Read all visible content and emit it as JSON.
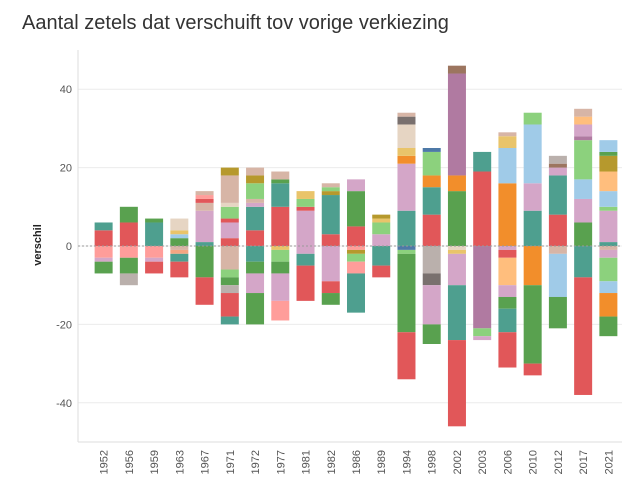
{
  "chart_data": {
    "type": "bar",
    "stacked": "diverging",
    "title": "Aantal zetels dat verschuift tov vorige verkiezing",
    "xlabel": "",
    "ylabel": "verschil",
    "ylim": [
      -50,
      50
    ],
    "yticks": [
      40,
      20,
      0,
      -20,
      -40
    ],
    "categories": [
      "1952",
      "1956",
      "1959",
      "1963",
      "1967",
      "1971",
      "1972",
      "1977",
      "1981",
      "1982",
      "1986",
      "1989",
      "1994",
      "1998",
      "2002",
      "2003",
      "2006",
      "2010",
      "2012",
      "2017",
      "2021"
    ],
    "bars": [
      {
        "year": "1952",
        "segments": [
          {
            "c": "#e15759",
            "v": 4
          },
          {
            "c": "#4e9f8f",
            "v": 2
          },
          {
            "c": "#ff9d9a",
            "v": -3
          },
          {
            "c": "#d4a6c8",
            "v": -1
          },
          {
            "c": "#59a14f",
            "v": -3
          }
        ]
      },
      {
        "year": "1956",
        "segments": [
          {
            "c": "#e15759",
            "v": 6
          },
          {
            "c": "#59a14f",
            "v": 4
          },
          {
            "c": "#ff9d9a",
            "v": -3
          },
          {
            "c": "#59a14f",
            "v": -4
          },
          {
            "c": "#bab0ac",
            "v": -3
          }
        ]
      },
      {
        "year": "1959",
        "segments": [
          {
            "c": "#4e9f8f",
            "v": 6
          },
          {
            "c": "#59a14f",
            "v": 1
          },
          {
            "c": "#ff9d9a",
            "v": -3
          },
          {
            "c": "#d4a6c8",
            "v": -1
          },
          {
            "c": "#e15759",
            "v": -3
          }
        ]
      },
      {
        "year": "1963",
        "segments": [
          {
            "c": "#59a14f",
            "v": 2
          },
          {
            "c": "#a0cbe8",
            "v": 1
          },
          {
            "c": "#e9c46a",
            "v": 1
          },
          {
            "c": "#e6d5c3",
            "v": 3
          },
          {
            "c": "#d7b5a6",
            "v": -1
          },
          {
            "c": "#f4a582",
            "v": -1
          },
          {
            "c": "#4e9f8f",
            "v": -2
          },
          {
            "c": "#e15759",
            "v": -4
          }
        ]
      },
      {
        "year": "1967",
        "segments": [
          {
            "c": "#4e9f8f",
            "v": 1
          },
          {
            "c": "#d4a6c8",
            "v": 8
          },
          {
            "c": "#d7b5a6",
            "v": 2
          },
          {
            "c": "#e15759",
            "v": 1
          },
          {
            "c": "#ff9d9a",
            "v": 1
          },
          {
            "c": "#d7b5a6",
            "v": 1
          },
          {
            "c": "#59a14f",
            "v": -8
          },
          {
            "c": "#e15759",
            "v": -7
          }
        ]
      },
      {
        "year": "1971",
        "segments": [
          {
            "c": "#e15759",
            "v": 2
          },
          {
            "c": "#d4a6c8",
            "v": 4
          },
          {
            "c": "#e15759",
            "v": 1
          },
          {
            "c": "#8cd17d",
            "v": 3
          },
          {
            "c": "#e6d5c3",
            "v": 1
          },
          {
            "c": "#d7b5a6",
            "v": 7
          },
          {
            "c": "#b6992d",
            "v": 2
          },
          {
            "c": "#d7b5a6",
            "v": -6
          },
          {
            "c": "#8cd17d",
            "v": -2
          },
          {
            "c": "#59a14f",
            "v": -2
          },
          {
            "c": "#bab0ac",
            "v": -2
          },
          {
            "c": "#e15759",
            "v": -6
          },
          {
            "c": "#4e9f8f",
            "v": -2
          }
        ]
      },
      {
        "year": "1972",
        "segments": [
          {
            "c": "#e15759",
            "v": 4
          },
          {
            "c": "#4e9f8f",
            "v": 6
          },
          {
            "c": "#d4a6c8",
            "v": 1
          },
          {
            "c": "#d7b5a6",
            "v": 1
          },
          {
            "c": "#8cd17d",
            "v": 4
          },
          {
            "c": "#b6992d",
            "v": 2
          },
          {
            "c": "#d7b5a6",
            "v": 2
          },
          {
            "c": "#4e9f8f",
            "v": -4
          },
          {
            "c": "#59a14f",
            "v": -3
          },
          {
            "c": "#d4a6c8",
            "v": -5
          },
          {
            "c": "#59a14f",
            "v": -8
          }
        ]
      },
      {
        "year": "1977",
        "segments": [
          {
            "c": "#e15759",
            "v": 10
          },
          {
            "c": "#4e9f8f",
            "v": 6
          },
          {
            "c": "#59a14f",
            "v": 1
          },
          {
            "c": "#d7b5a6",
            "v": 2
          },
          {
            "c": "#e9c46a",
            "v": -1
          },
          {
            "c": "#8cd17d",
            "v": -3
          },
          {
            "c": "#59a14f",
            "v": -3
          },
          {
            "c": "#d4a6c8",
            "v": -7
          },
          {
            "c": "#ff9d9a",
            "v": -5
          }
        ]
      },
      {
        "year": "1981",
        "segments": [
          {
            "c": "#d4a6c8",
            "v": 9
          },
          {
            "c": "#e15759",
            "v": 1
          },
          {
            "c": "#8cd17d",
            "v": 2
          },
          {
            "c": "#e9c46a",
            "v": 2
          },
          {
            "c": "#d4a6c8",
            "v": -2
          },
          {
            "c": "#4e9f8f",
            "v": -3
          },
          {
            "c": "#e15759",
            "v": -9
          }
        ]
      },
      {
        "year": "1982",
        "segments": [
          {
            "c": "#e15759",
            "v": 3
          },
          {
            "c": "#4e9f8f",
            "v": 10
          },
          {
            "c": "#b6992d",
            "v": 1
          },
          {
            "c": "#8cd17d",
            "v": 1
          },
          {
            "c": "#d7b5a6",
            "v": 1
          },
          {
            "c": "#d4a6c8",
            "v": -9
          },
          {
            "c": "#e15759",
            "v": -3
          },
          {
            "c": "#59a14f",
            "v": -3
          }
        ]
      },
      {
        "year": "1986",
        "segments": [
          {
            "c": "#e15759",
            "v": 5
          },
          {
            "c": "#59a14f",
            "v": 9
          },
          {
            "c": "#d4a6c8",
            "v": 3
          },
          {
            "c": "#ff9d9a",
            "v": -1
          },
          {
            "c": "#b6992d",
            "v": -1
          },
          {
            "c": "#8cd17d",
            "v": -2
          },
          {
            "c": "#ff9d9a",
            "v": -3
          },
          {
            "c": "#4e9f8f",
            "v": -10
          }
        ]
      },
      {
        "year": "1989",
        "segments": [
          {
            "c": "#d4a6c8",
            "v": 3
          },
          {
            "c": "#8cd17d",
            "v": 3
          },
          {
            "c": "#e9c46a",
            "v": 1
          },
          {
            "c": "#b6992d",
            "v": 1
          },
          {
            "c": "#4e9f8f",
            "v": -5
          },
          {
            "c": "#e15759",
            "v": -3
          }
        ]
      },
      {
        "year": "1994",
        "segments": [
          {
            "c": "#4e9f8f",
            "v": 9
          },
          {
            "c": "#d4a6c8",
            "v": 12
          },
          {
            "c": "#f28e2b",
            "v": 2
          },
          {
            "c": "#e9c46a",
            "v": 2
          },
          {
            "c": "#e6d5c3",
            "v": 6
          },
          {
            "c": "#79706e",
            "v": 2
          },
          {
            "c": "#d7b5a6",
            "v": 1
          },
          {
            "c": "#4e79a7",
            "v": -1
          },
          {
            "c": "#8cd17d",
            "v": -1
          },
          {
            "c": "#59a14f",
            "v": -20
          },
          {
            "c": "#e15759",
            "v": -12
          }
        ]
      },
      {
        "year": "1998",
        "segments": [
          {
            "c": "#e15759",
            "v": 8
          },
          {
            "c": "#4e9f8f",
            "v": 7
          },
          {
            "c": "#f28e2b",
            "v": 3
          },
          {
            "c": "#8cd17d",
            "v": 6
          },
          {
            "c": "#4e79a7",
            "v": 1
          },
          {
            "c": "#bab0ac",
            "v": -7
          },
          {
            "c": "#79706e",
            "v": -3
          },
          {
            "c": "#d4a6c8",
            "v": -10
          },
          {
            "c": "#59a14f",
            "v": -5
          }
        ]
      },
      {
        "year": "2002",
        "segments": [
          {
            "c": "#59a14f",
            "v": 14
          },
          {
            "c": "#f28e2b",
            "v": 4
          },
          {
            "c": "#b07aa1",
            "v": 26
          },
          {
            "c": "#9c755f",
            "v": 2
          },
          {
            "c": "#e6d5c3",
            "v": -1
          },
          {
            "c": "#e9c46a",
            "v": -1
          },
          {
            "c": "#d4a6c8",
            "v": -8
          },
          {
            "c": "#4e9f8f",
            "v": -14
          },
          {
            "c": "#e15759",
            "v": -22
          }
        ]
      },
      {
        "year": "2003",
        "segments": [
          {
            "c": "#e15759",
            "v": 19
          },
          {
            "c": "#4e9f8f",
            "v": 5
          },
          {
            "c": "#b07aa1",
            "v": -21
          },
          {
            "c": "#8cd17d",
            "v": -2
          },
          {
            "c": "#d4a6c8",
            "v": -1
          }
        ]
      },
      {
        "year": "2006",
        "segments": [
          {
            "c": "#f28e2b",
            "v": 16
          },
          {
            "c": "#a0cbe8",
            "v": 9
          },
          {
            "c": "#e9c46a",
            "v": 3
          },
          {
            "c": "#d7b5a6",
            "v": 1
          },
          {
            "c": "#d4a6c8",
            "v": -1
          },
          {
            "c": "#e15759",
            "v": -2
          },
          {
            "c": "#ffbe7d",
            "v": -7
          },
          {
            "c": "#d4a6c8",
            "v": -3
          },
          {
            "c": "#59a14f",
            "v": -3
          },
          {
            "c": "#4e9f8f",
            "v": -6
          },
          {
            "c": "#e15759",
            "v": -9
          }
        ]
      },
      {
        "year": "2010",
        "segments": [
          {
            "c": "#4e9f8f",
            "v": 9
          },
          {
            "c": "#d4a6c8",
            "v": 7
          },
          {
            "c": "#a0cbe8",
            "v": 15
          },
          {
            "c": "#8cd17d",
            "v": 3
          },
          {
            "c": "#f28e2b",
            "v": -10
          },
          {
            "c": "#59a14f",
            "v": -20
          },
          {
            "c": "#e15759",
            "v": -3
          }
        ]
      },
      {
        "year": "2012",
        "segments": [
          {
            "c": "#e15759",
            "v": 8
          },
          {
            "c": "#4e9f8f",
            "v": 10
          },
          {
            "c": "#d4a6c8",
            "v": 2
          },
          {
            "c": "#9c755f",
            "v": 1
          },
          {
            "c": "#bab0ac",
            "v": 2
          },
          {
            "c": "#d7b5a6",
            "v": -2
          },
          {
            "c": "#a0cbe8",
            "v": -11
          },
          {
            "c": "#59a14f",
            "v": -8
          }
        ]
      },
      {
        "year": "2017",
        "segments": [
          {
            "c": "#59a14f",
            "v": 6
          },
          {
            "c": "#d4a6c8",
            "v": 6
          },
          {
            "c": "#a0cbe8",
            "v": 5
          },
          {
            "c": "#8cd17d",
            "v": 10
          },
          {
            "c": "#b07aa1",
            "v": 1
          },
          {
            "c": "#d4a6c8",
            "v": 3
          },
          {
            "c": "#ffbe7d",
            "v": 2
          },
          {
            "c": "#d7b5a6",
            "v": 2
          },
          {
            "c": "#4e9f8f",
            "v": -8
          },
          {
            "c": "#e15759",
            "v": -30
          }
        ]
      },
      {
        "year": "2021",
        "segments": [
          {
            "c": "#4e9f8f",
            "v": 1
          },
          {
            "c": "#d4a6c8",
            "v": 8
          },
          {
            "c": "#8cd17d",
            "v": 1
          },
          {
            "c": "#a0cbe8",
            "v": 4
          },
          {
            "c": "#ffbe7d",
            "v": 5
          },
          {
            "c": "#b6992d",
            "v": 4
          },
          {
            "c": "#59a14f",
            "v": 1
          },
          {
            "c": "#a0cbe8",
            "v": 3
          },
          {
            "c": "#d7b5a6",
            "v": -1
          },
          {
            "c": "#d4a6c8",
            "v": -2
          },
          {
            "c": "#8cd17d",
            "v": -6
          },
          {
            "c": "#a0cbe8",
            "v": -3
          },
          {
            "c": "#f28e2b",
            "v": -6
          },
          {
            "c": "#59a14f",
            "v": -5
          }
        ]
      }
    ]
  }
}
